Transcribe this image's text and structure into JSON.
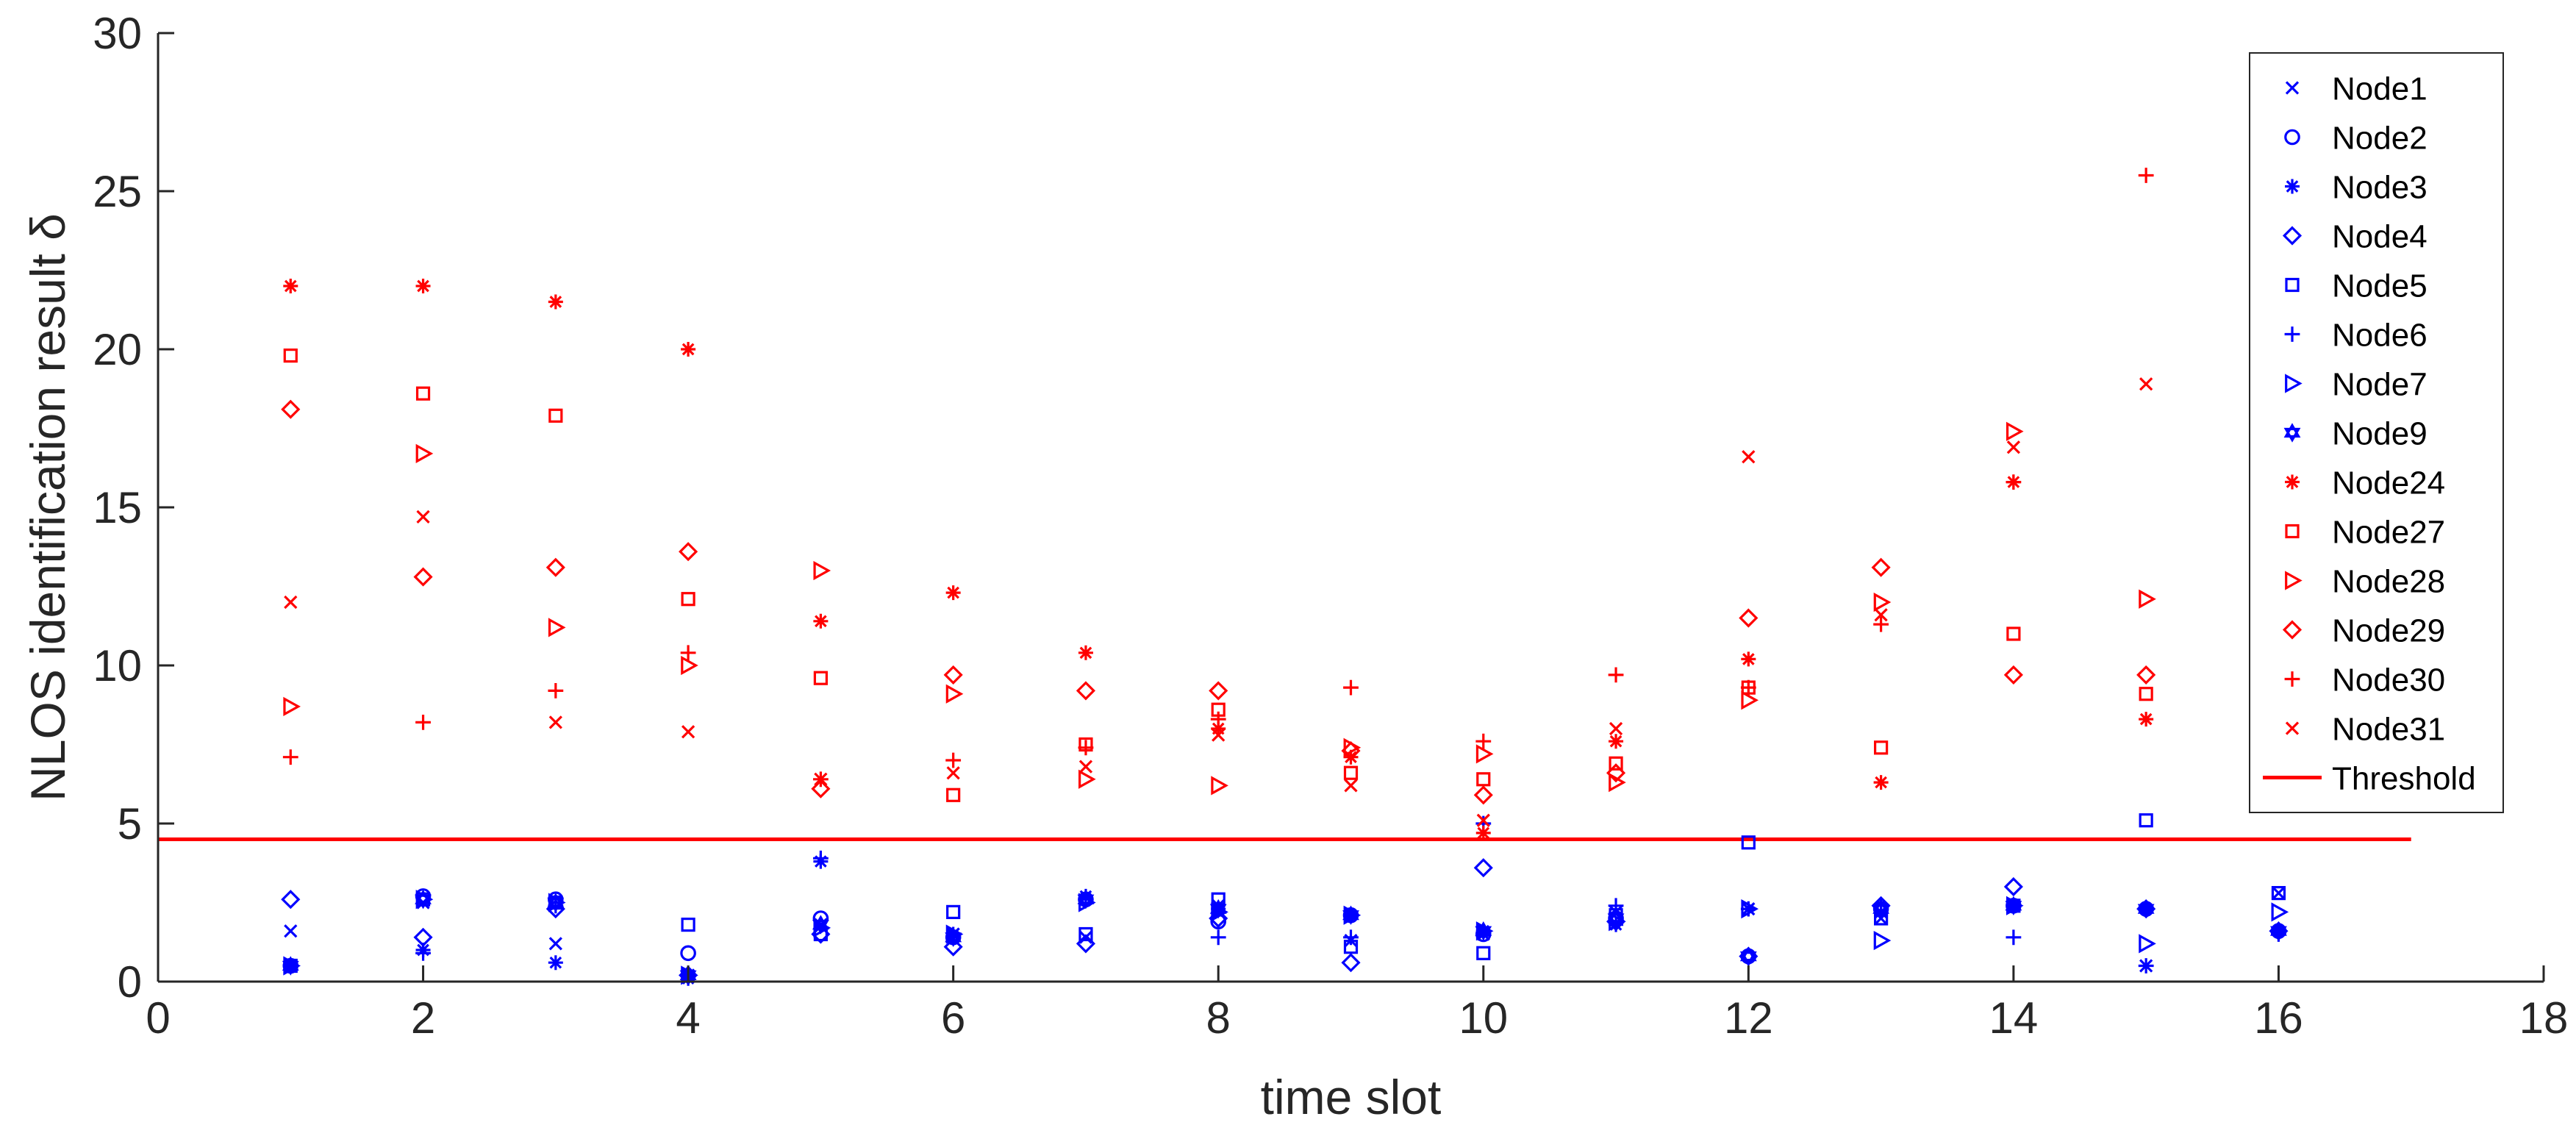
{
  "chart_data": {
    "type": "scatter",
    "title": "",
    "xlabel": "time slot",
    "ylabel": "NLOS identification result δ",
    "xlim": [
      0,
      18
    ],
    "ylim": [
      0,
      30
    ],
    "xticks": [
      "0",
      "2",
      "4",
      "6",
      "8",
      "10",
      "12",
      "14",
      "16",
      "18"
    ],
    "yticks": [
      "0",
      "5",
      "10",
      "15",
      "20",
      "25",
      "30"
    ],
    "grid": false,
    "legend_position": "top-right",
    "colors": {
      "blue": "#0000ff",
      "red": "#ff0000",
      "axis": "#262626"
    },
    "series": [
      {
        "name": "Node1",
        "marker": "x",
        "color": "#0000ff",
        "points": [
          [
            1,
            1.6
          ],
          [
            2,
            2.5
          ],
          [
            3,
            1.2
          ],
          [
            4,
            0.2
          ],
          [
            5,
            1.8
          ],
          [
            6,
            1.5
          ],
          [
            7,
            1.4
          ],
          [
            8,
            2.4
          ],
          [
            9,
            1.3
          ],
          [
            10,
            1.5
          ],
          [
            11,
            2.2
          ],
          [
            12,
            2.3
          ],
          [
            13,
            2.0
          ],
          [
            14,
            2.4
          ],
          [
            15,
            0.5
          ],
          [
            16,
            2.8
          ]
        ]
      },
      {
        "name": "Node2",
        "marker": "o",
        "color": "#0000ff",
        "points": [
          [
            1,
            0.5
          ],
          [
            2,
            2.7
          ],
          [
            3,
            2.6
          ],
          [
            4,
            0.9
          ],
          [
            5,
            2.0
          ],
          [
            6,
            1.4
          ],
          [
            7,
            2.6
          ],
          [
            8,
            1.9
          ],
          [
            9,
            2.1
          ],
          [
            10,
            1.5
          ],
          [
            11,
            2.0
          ],
          [
            12,
            0.8
          ],
          [
            13,
            2.3
          ],
          [
            14,
            2.4
          ],
          [
            15,
            2.3
          ],
          [
            16,
            1.6
          ]
        ]
      },
      {
        "name": "Node3",
        "marker": "*",
        "color": "#0000ff",
        "points": [
          [
            1,
            0.5
          ],
          [
            2,
            1.0
          ],
          [
            3,
            0.6
          ],
          [
            4,
            0.1
          ],
          [
            5,
            3.8
          ],
          [
            6,
            1.5
          ],
          [
            7,
            2.7
          ],
          [
            8,
            2.3
          ],
          [
            9,
            2.1
          ],
          [
            10,
            1.6
          ],
          [
            11,
            1.8
          ],
          [
            12,
            2.3
          ],
          [
            13,
            2.2
          ],
          [
            14,
            2.4
          ],
          [
            15,
            2.3
          ],
          [
            16,
            1.6
          ]
        ]
      },
      {
        "name": "Node4",
        "marker": "diamond",
        "color": "#0000ff",
        "points": [
          [
            1,
            2.6
          ],
          [
            2,
            1.4
          ],
          [
            3,
            2.3
          ],
          [
            4,
            0.2
          ],
          [
            5,
            1.5
          ],
          [
            6,
            1.1
          ],
          [
            7,
            1.2
          ],
          [
            8,
            2.0
          ],
          [
            9,
            0.6
          ],
          [
            10,
            3.6
          ],
          [
            11,
            1.9
          ],
          [
            12,
            0.8
          ],
          [
            13,
            2.4
          ],
          [
            14,
            3.0
          ],
          [
            15,
            2.3
          ],
          [
            16,
            1.6
          ]
        ]
      },
      {
        "name": "Node5",
        "marker": "square",
        "color": "#0000ff",
        "points": [
          [
            1,
            0.5
          ],
          [
            2,
            2.6
          ],
          [
            3,
            2.5
          ],
          [
            4,
            1.8
          ],
          [
            5,
            1.5
          ],
          [
            6,
            2.2
          ],
          [
            7,
            1.5
          ],
          [
            8,
            2.6
          ],
          [
            9,
            1.1
          ],
          [
            10,
            0.9
          ],
          [
            11,
            2.1
          ],
          [
            12,
            4.4
          ],
          [
            13,
            2.0
          ],
          [
            14,
            2.4
          ],
          [
            15,
            5.1
          ],
          [
            16,
            2.8
          ]
        ]
      },
      {
        "name": "Node6",
        "marker": "+",
        "color": "#0000ff",
        "points": [
          [
            1,
            0.5
          ],
          [
            2,
            0.9
          ],
          [
            3,
            2.4
          ],
          [
            4,
            0.2
          ],
          [
            5,
            3.9
          ],
          [
            6,
            1.4
          ],
          [
            7,
            2.6
          ],
          [
            8,
            1.4
          ],
          [
            9,
            1.4
          ],
          [
            10,
            5.0
          ],
          [
            11,
            2.4
          ],
          [
            12,
            2.3
          ],
          [
            13,
            2.4
          ],
          [
            14,
            1.4
          ],
          [
            15,
            0.5
          ],
          [
            16,
            1.5
          ]
        ]
      },
      {
        "name": "Node7",
        "marker": "triangle-right",
        "color": "#0000ff",
        "points": [
          [
            1,
            0.5
          ],
          [
            2,
            2.6
          ],
          [
            3,
            2.5
          ],
          [
            4,
            0.2
          ],
          [
            5,
            1.7
          ],
          [
            6,
            1.5
          ],
          [
            7,
            2.5
          ],
          [
            8,
            2.2
          ],
          [
            9,
            2.1
          ],
          [
            10,
            1.6
          ],
          [
            11,
            1.9
          ],
          [
            12,
            2.3
          ],
          [
            13,
            1.3
          ],
          [
            14,
            2.4
          ],
          [
            15,
            1.2
          ],
          [
            16,
            2.2
          ]
        ]
      },
      {
        "name": "Node9",
        "marker": "hexagram",
        "color": "#0000ff",
        "points": [
          [
            1,
            0.5
          ],
          [
            2,
            2.6
          ],
          [
            3,
            2.5
          ],
          [
            4,
            0.2
          ],
          [
            5,
            1.8
          ],
          [
            6,
            1.4
          ],
          [
            7,
            2.6
          ],
          [
            8,
            2.3
          ],
          [
            9,
            2.1
          ],
          [
            10,
            1.6
          ],
          [
            11,
            2.0
          ],
          [
            12,
            0.8
          ],
          [
            13,
            2.3
          ],
          [
            14,
            2.4
          ],
          [
            15,
            2.3
          ],
          [
            16,
            1.6
          ]
        ]
      },
      {
        "name": "Node24",
        "marker": "*",
        "color": "#ff0000",
        "points": [
          [
            1,
            22.0
          ],
          [
            2,
            22.0
          ],
          [
            3,
            21.5
          ],
          [
            4,
            20.0
          ],
          [
            5,
            11.4
          ],
          [
            6,
            12.3
          ],
          [
            7,
            10.4
          ],
          [
            8,
            8.0
          ],
          [
            9,
            7.1
          ],
          [
            10,
            4.7
          ],
          [
            11,
            7.6
          ],
          [
            12,
            10.2
          ],
          [
            13,
            6.3
          ],
          [
            14,
            15.8
          ],
          [
            15,
            8.3
          ]
        ]
      },
      {
        "name": "Node27",
        "marker": "square",
        "color": "#ff0000",
        "points": [
          [
            1,
            19.8
          ],
          [
            2,
            18.6
          ],
          [
            3,
            17.9
          ],
          [
            4,
            12.1
          ],
          [
            5,
            9.6
          ],
          [
            6,
            5.9
          ],
          [
            7,
            7.5
          ],
          [
            8,
            8.6
          ],
          [
            9,
            6.6
          ],
          [
            10,
            6.4
          ],
          [
            11,
            6.9
          ],
          [
            12,
            9.3
          ],
          [
            13,
            7.4
          ],
          [
            14,
            11.0
          ],
          [
            15,
            9.1
          ]
        ]
      },
      {
        "name": "Node28",
        "marker": "triangle-right",
        "color": "#ff0000",
        "points": [
          [
            1,
            8.7
          ],
          [
            2,
            16.7
          ],
          [
            3,
            11.2
          ],
          [
            4,
            10.0
          ],
          [
            5,
            13.0
          ],
          [
            6,
            9.1
          ],
          [
            7,
            6.4
          ],
          [
            8,
            6.2
          ],
          [
            9,
            7.4
          ],
          [
            10,
            7.2
          ],
          [
            11,
            6.3
          ],
          [
            12,
            8.9
          ],
          [
            13,
            12.0
          ],
          [
            14,
            17.4
          ],
          [
            15,
            12.1
          ]
        ]
      },
      {
        "name": "Node29",
        "marker": "diamond",
        "color": "#ff0000",
        "points": [
          [
            1,
            18.1
          ],
          [
            2,
            12.8
          ],
          [
            3,
            13.1
          ],
          [
            4,
            13.6
          ],
          [
            5,
            6.1
          ],
          [
            6,
            9.7
          ],
          [
            7,
            9.2
          ],
          [
            8,
            9.2
          ],
          [
            9,
            7.3
          ],
          [
            10,
            5.9
          ],
          [
            11,
            6.6
          ],
          [
            12,
            11.5
          ],
          [
            13,
            13.1
          ],
          [
            14,
            9.7
          ],
          [
            15,
            9.7
          ]
        ]
      },
      {
        "name": "Node30",
        "marker": "+",
        "color": "#ff0000",
        "points": [
          [
            1,
            7.1
          ],
          [
            2,
            8.2
          ],
          [
            3,
            9.2
          ],
          [
            4,
            10.4
          ],
          [
            5,
            6.4
          ],
          [
            6,
            7.0
          ],
          [
            7,
            7.4
          ],
          [
            8,
            8.3
          ],
          [
            9,
            9.3
          ],
          [
            10,
            7.6
          ],
          [
            11,
            9.7
          ],
          [
            12,
            9.3
          ],
          [
            13,
            11.3
          ],
          [
            14,
            15.8
          ],
          [
            15,
            25.5
          ]
        ]
      },
      {
        "name": "Node31",
        "marker": "x",
        "color": "#ff0000",
        "points": [
          [
            1,
            12.0
          ],
          [
            2,
            14.7
          ],
          [
            3,
            8.2
          ],
          [
            4,
            7.9
          ],
          [
            5,
            6.4
          ],
          [
            6,
            6.6
          ],
          [
            7,
            6.8
          ],
          [
            8,
            7.8
          ],
          [
            9,
            6.2
          ],
          [
            10,
            5.1
          ],
          [
            11,
            8.0
          ],
          [
            12,
            16.6
          ],
          [
            13,
            11.6
          ],
          [
            14,
            16.9
          ],
          [
            15,
            18.9
          ]
        ]
      }
    ],
    "threshold": {
      "name": "Threshold",
      "color": "#ff0000",
      "y": 4.5,
      "x_range": [
        0,
        17
      ]
    }
  }
}
